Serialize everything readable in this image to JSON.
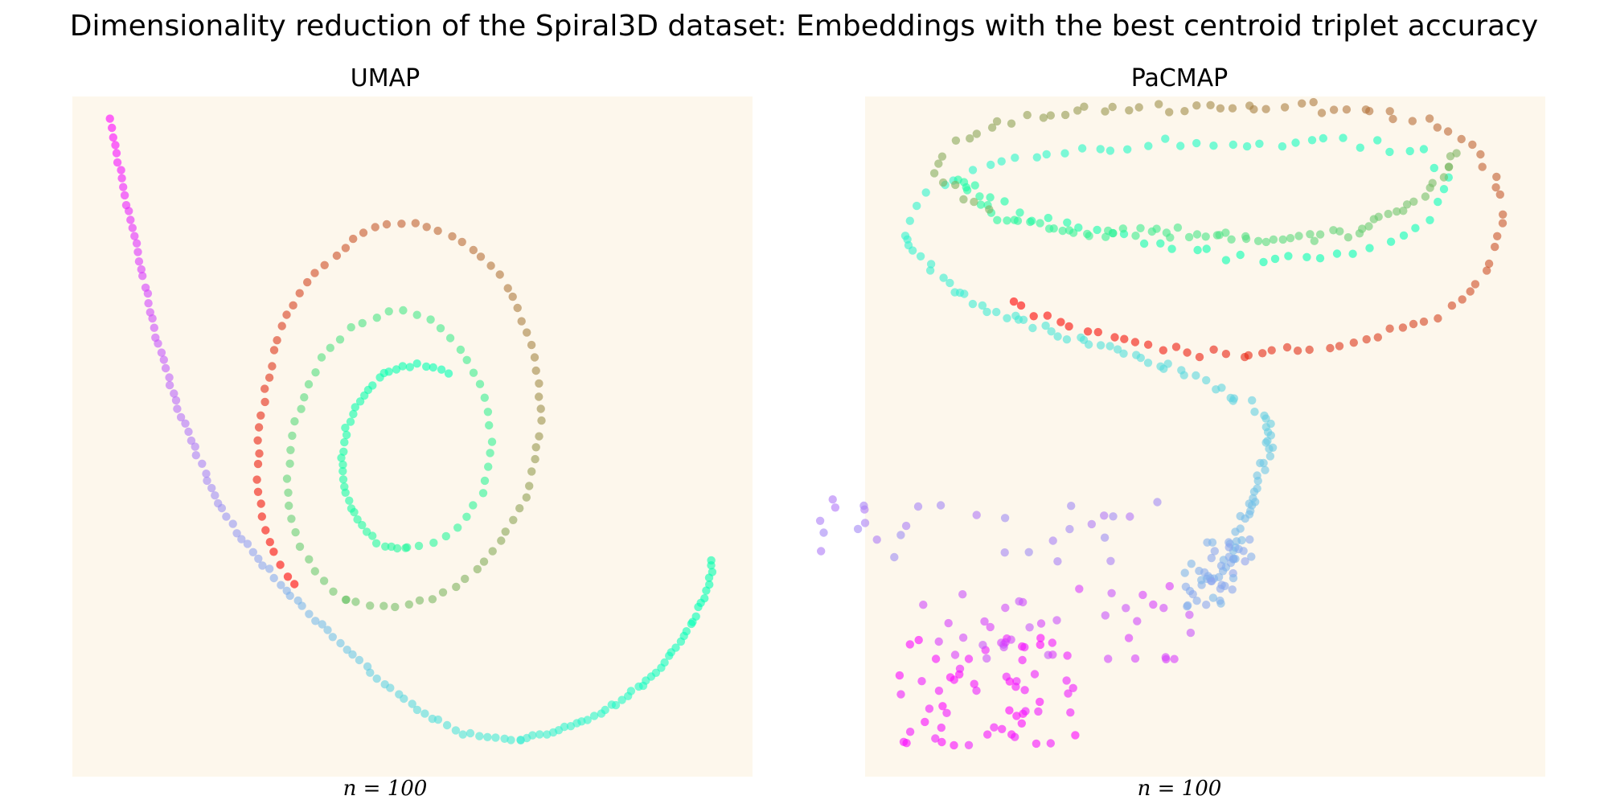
{
  "figure": {
    "title": "Dimensionality reduction of the Spiral3D dataset: Embeddings with the best centroid triplet accuracy",
    "panel_background": "#fdf7ec",
    "point_opacity": 0.6
  },
  "chart_data": [
    {
      "type": "scatter",
      "title": "UMAP",
      "footer": "n = 100",
      "colormap": "rainbow",
      "color_by": "spiral position",
      "axes_visible": false,
      "xlim": [
        0,
        100
      ],
      "ylim": [
        0,
        100
      ],
      "curves": [
        {
          "t0": 0.0,
          "t1": 0.38,
          "n": 95,
          "points": [
            [
              5.5,
              96.5
            ],
            [
              7,
              89
            ],
            [
              9,
              80
            ],
            [
              10.5,
              73
            ],
            [
              12,
              66
            ],
            [
              13.5,
              61
            ],
            [
              15.5,
              54
            ],
            [
              18.5,
              47
            ],
            [
              21.5,
              40
            ],
            [
              25.5,
              34
            ],
            [
              30,
              29
            ],
            [
              35,
              24
            ],
            [
              40.5,
              18.5
            ],
            [
              46,
              13.5
            ],
            [
              51.5,
              9.5
            ],
            [
              57,
              6.5
            ],
            [
              62,
              5.5
            ],
            [
              66,
              5.3
            ]
          ]
        },
        {
          "t0": 0.38,
          "t1": 0.52,
          "n": 45,
          "points": [
            [
              66,
              5.3
            ],
            [
              71,
              6.5
            ],
            [
              76,
              8.5
            ],
            [
              81,
              11.5
            ],
            [
              86,
              15.5
            ],
            [
              90,
              20.5
            ],
            [
              92.5,
              25.5
            ],
            [
              94,
              30
            ],
            [
              94,
              32
            ]
          ]
        },
        {
          "t0": 0.5,
          "t1": 0.57,
          "n": 40,
          "points": [
            [
              55,
              59.5
            ],
            [
              52,
              60.5
            ],
            [
              49,
              60.5
            ],
            [
              46,
              59.5
            ],
            [
              42.5,
              56
            ],
            [
              40.5,
              51.5
            ],
            [
              39.5,
              46.5
            ],
            [
              40,
              42
            ],
            [
              42,
              37.5
            ],
            [
              45.5,
              34
            ],
            [
              49,
              33.5
            ]
          ]
        },
        {
          "t0": 0.57,
          "t1": 0.72,
          "n": 50,
          "points": [
            [
              49,
              33.5
            ],
            [
              53,
              34.5
            ],
            [
              57,
              37
            ],
            [
              60,
              41
            ],
            [
              61.5,
              46
            ],
            [
              61.5,
              52
            ],
            [
              60,
              58
            ],
            [
              57,
              63
            ],
            [
              53,
              67
            ],
            [
              49,
              68.5
            ],
            [
              45,
              68
            ],
            [
              41,
              66
            ],
            [
              37,
              62
            ],
            [
              34.5,
              57
            ],
            [
              32.5,
              51
            ],
            [
              31.5,
              45
            ],
            [
              32,
              39
            ],
            [
              33.5,
              34
            ],
            [
              36.5,
              29
            ],
            [
              40,
              26
            ]
          ]
        },
        {
          "t0": 0.72,
          "t1": 1.0,
          "n": 80,
          "points": [
            [
              40,
              26
            ],
            [
              44,
              25
            ],
            [
              48,
              25
            ],
            [
              52,
              26
            ],
            [
              56,
              27.5
            ],
            [
              60,
              31
            ],
            [
              64,
              36
            ],
            [
              67,
              42
            ],
            [
              68.5,
              49
            ],
            [
              69,
              55
            ],
            [
              68,
              62
            ],
            [
              66,
              68
            ],
            [
              63,
              73.5
            ],
            [
              59,
              77.5
            ],
            [
              55,
              80
            ],
            [
              50,
              81.5
            ],
            [
              45,
              81
            ],
            [
              42,
              79.5
            ],
            [
              40,
              77.5
            ],
            [
              35.5,
              74
            ],
            [
              32.5,
              70
            ],
            [
              30,
              64
            ],
            [
              28.5,
              57
            ],
            [
              27.5,
              50
            ],
            [
              27,
              43
            ],
            [
              28,
              37
            ],
            [
              30,
              32
            ],
            [
              32.5,
              28
            ]
          ]
        }
      ]
    },
    {
      "type": "scatter",
      "title": "PaCMAP",
      "footer": "n = 100",
      "colormap": "rainbow",
      "color_by": "spiral position",
      "axes_visible": false,
      "xlim": [
        0,
        100
      ],
      "ylim": [
        0,
        100
      ],
      "clusters": [
        {
          "t": 0.02,
          "n": 60,
          "spread": [
            13,
            8
          ],
          "center": [
            18,
            12.5
          ]
        },
        {
          "t": 0.09,
          "n": 40,
          "spread": [
            20,
            6
          ],
          "center": [
            28,
            23
          ]
        },
        {
          "t": 0.17,
          "n": 30,
          "spread": [
            25,
            5
          ],
          "center": [
            18,
            36
          ]
        },
        {
          "t": 0.24,
          "n": 40,
          "spread": [
            5,
            5
          ],
          "center": [
            52,
            30
          ]
        }
      ],
      "curves": [
        {
          "t0": 0.24,
          "t1": 0.3,
          "n": 40,
          "points": [
            [
              50,
              28
            ],
            [
              54,
              32
            ],
            [
              56,
              38
            ],
            [
              58,
              44
            ],
            [
              60,
              50
            ],
            [
              59,
              52
            ]
          ]
        },
        {
          "t0": 0.3,
          "t1": 0.4,
          "n": 50,
          "points": [
            [
              59,
              52
            ],
            [
              57,
              54
            ],
            [
              51,
              58
            ],
            [
              44,
              60
            ],
            [
              35,
              63.5
            ],
            [
              25,
              66
            ],
            [
              17,
              69
            ],
            [
              10,
              74
            ],
            [
              6,
              79
            ]
          ]
        },
        {
          "t0": 0.4,
          "t1": 0.55,
          "n": 70,
          "points": [
            [
              6,
              79
            ],
            [
              8,
              84
            ],
            [
              12,
              88
            ],
            [
              20,
              90
            ],
            [
              30,
              92
            ],
            [
              45,
              93
            ],
            [
              60,
              93
            ],
            [
              72,
              93
            ],
            [
              82,
              92
            ],
            [
              86,
              87
            ],
            [
              82,
              81
            ],
            [
              72,
              77
            ],
            [
              55,
              76
            ],
            [
              38,
              79
            ],
            [
              22,
              83
            ],
            [
              14,
              88
            ]
          ]
        },
        {
          "t0": 0.55,
          "t1": 0.75,
          "n": 70,
          "points": [
            [
              14,
              88
            ],
            [
              20,
              82
            ],
            [
              30,
              80
            ],
            [
              45,
              80
            ],
            [
              60,
              79
            ],
            [
              72,
              80
            ],
            [
              80,
              84
            ],
            [
              85,
              88
            ],
            [
              87,
              92
            ]
          ]
        },
        {
          "t0": 0.75,
          "t1": 1.0,
          "n": 100,
          "points": [
            [
              18,
              83
            ],
            [
              12,
              87
            ],
            [
              10,
              89
            ],
            [
              12,
              92
            ],
            [
              17,
              95
            ],
            [
              25,
              97
            ],
            [
              35,
              98
            ],
            [
              48,
              98.5
            ],
            [
              60,
              98.5
            ],
            [
              72,
              98
            ],
            [
              80,
              97
            ],
            [
              86,
              95
            ],
            [
              90,
              92
            ],
            [
              92,
              89
            ],
            [
              93,
              86
            ],
            [
              94,
              82
            ],
            [
              93,
              78
            ],
            [
              90,
              72
            ],
            [
              85,
              68
            ],
            [
              78,
              65
            ],
            [
              68,
              63
            ],
            [
              56,
              62
            ],
            [
              45,
              63
            ],
            [
              35,
              65
            ],
            [
              28,
              67
            ],
            [
              22,
              70
            ]
          ]
        }
      ]
    }
  ]
}
